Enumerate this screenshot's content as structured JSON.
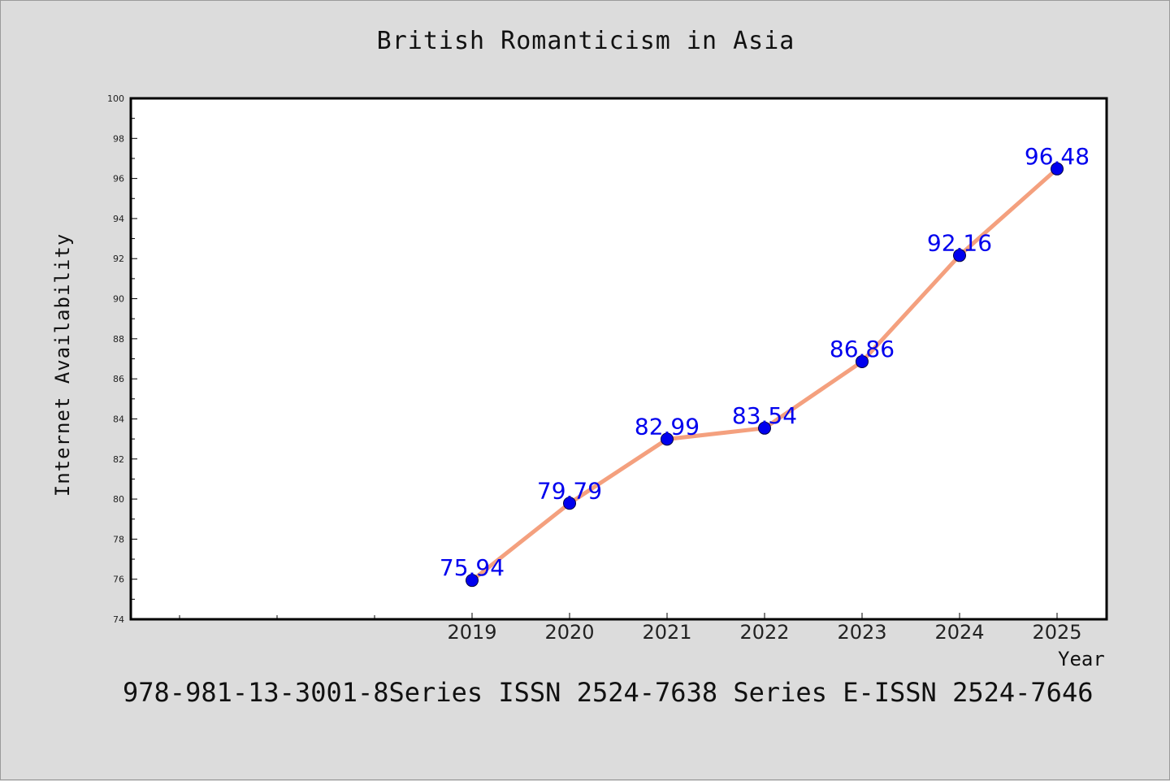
{
  "chart_data": {
    "type": "line",
    "title": "British Romanticism in Asia",
    "xlabel": "Year",
    "ylabel": "Internet Availability",
    "x": [
      "2019",
      "2020",
      "2021",
      "2022",
      "2023",
      "2024",
      "2025"
    ],
    "values": [
      75.94,
      79.79,
      82.99,
      83.54,
      86.86,
      92.16,
      96.48
    ],
    "data_labels": [
      "75.94",
      "79.79",
      "82.99",
      "83.54",
      "86.86",
      "92.16",
      "96.48"
    ],
    "ylim": [
      74,
      100
    ],
    "yticks": [
      "74",
      "76",
      "78",
      "80",
      "82",
      "84",
      "86",
      "88",
      "90",
      "92",
      "94",
      "96",
      "98",
      "100"
    ],
    "grid": false,
    "line_color": "#f4a07e",
    "marker_color": "#0000ee",
    "label_color": "#0000ee"
  },
  "footer": "978-981-13-3001-8Series ISSN 2524-7638 Series E-ISSN 2524-7646"
}
